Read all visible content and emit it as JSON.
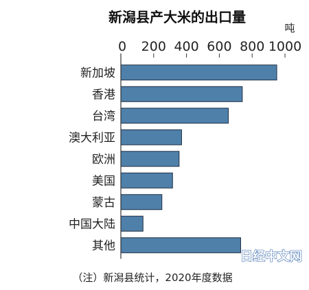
{
  "chart_data": {
    "type": "bar",
    "orientation": "horizontal",
    "title": "新潟县产大米的出口量",
    "unit_label": "吨",
    "xlim": [
      0,
      1000
    ],
    "xticks": [
      "0",
      "200",
      "400",
      "600",
      "800",
      "1000"
    ],
    "categories": [
      "新加坡",
      "香港",
      "台湾",
      "澳大利亚",
      "欧洲",
      "美国",
      "蒙古",
      "中国大陆",
      "其他"
    ],
    "values": [
      950,
      740,
      655,
      370,
      355,
      315,
      250,
      135,
      730
    ],
    "bar_color": "#4f80aa",
    "grid": false,
    "legend": "none"
  },
  "note": "（注）新潟县统计，2020年度数据",
  "watermark": "日经中文网"
}
